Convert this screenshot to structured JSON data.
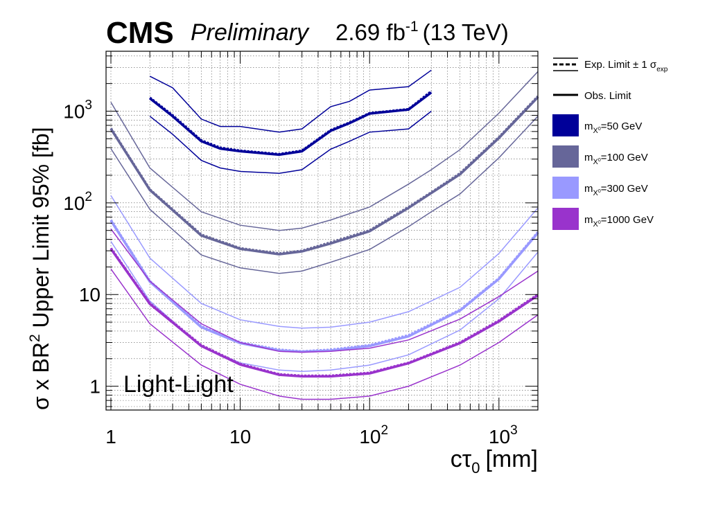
{
  "header": {
    "experiment": "CMS",
    "status": "Preliminary",
    "lumi": "2.69 fb",
    "lumi_exp": "-1",
    "energy": "(13 TeV)"
  },
  "chart_data": {
    "type": "line",
    "title": "",
    "xlabel": "cτ",
    "xlabel_sub": "0",
    "xlabel_unit": "[mm]",
    "ylabel_pre": "σ x BR",
    "ylabel_sup": "2",
    "ylabel_post": " Upper Limit 95% [fb]",
    "xscale": "log",
    "yscale": "log",
    "xlim": [
      1,
      2000
    ],
    "ylim": [
      0.55,
      4500
    ],
    "grid": true,
    "annotation": "Light-Light",
    "x_ticks": [
      {
        "value": 1,
        "base": "1",
        "exp": ""
      },
      {
        "value": 10,
        "base": "10",
        "exp": ""
      },
      {
        "value": 100,
        "base": "10",
        "exp": "2"
      },
      {
        "value": 1000,
        "base": "10",
        "exp": "3"
      }
    ],
    "y_ticks": [
      {
        "value": 1,
        "base": "1",
        "exp": ""
      },
      {
        "value": 10,
        "base": "10",
        "exp": ""
      },
      {
        "value": 100,
        "base": "10",
        "exp": "2"
      },
      {
        "value": 1000,
        "base": "10",
        "exp": "3"
      }
    ],
    "legend": {
      "placement": "right",
      "exp_label": "Exp. Limit ± 1 σ",
      "exp_label_sub": "exp",
      "obs_label": "Obs. Limit",
      "mass_prefix": "m",
      "mass_sub": "X",
      "mass_sub_sup": "0"
    },
    "series": [
      {
        "name": "=50 GeV",
        "color": "#000099",
        "x": [
          2,
          3,
          5,
          7,
          10,
          20,
          30,
          50,
          70,
          100,
          200,
          300
        ],
        "expected": [
          1400,
          900,
          480,
          400,
          370,
          340,
          370,
          620,
          750,
          950,
          1050,
          1650
        ],
        "observed": [
          1380,
          880,
          470,
          390,
          365,
          335,
          365,
          610,
          740,
          940,
          1040,
          1600
        ],
        "exp_up": [
          2400,
          1800,
          820,
          680,
          680,
          590,
          640,
          1120,
          1280,
          1700,
          1850,
          2800
        ],
        "exp_down": [
          880,
          560,
          290,
          240,
          220,
          210,
          230,
          385,
          470,
          590,
          640,
          1000
        ]
      },
      {
        "name": "=100 GeV",
        "color": "#666699",
        "x": [
          1,
          2,
          5,
          10,
          20,
          30,
          50,
          100,
          200,
          300,
          500,
          1000,
          2000
        ],
        "expected": [
          650,
          140,
          45,
          32,
          28,
          30,
          37,
          50,
          90,
          130,
          210,
          520,
          1450
        ],
        "observed": [
          640,
          138,
          44,
          31.5,
          27.5,
          29.5,
          36,
          49,
          88,
          128,
          205,
          510,
          1420
        ],
        "exp_up": [
          1250,
          240,
          80,
          57,
          50,
          53,
          65,
          90,
          160,
          230,
          380,
          950,
          2700
        ],
        "exp_down": [
          390,
          85,
          27,
          19.5,
          17,
          18,
          22.5,
          31,
          55,
          80,
          125,
          310,
          880
        ]
      },
      {
        "name": "=300 GeV",
        "color": "#9999ff",
        "x": [
          1,
          2,
          5,
          10,
          20,
          30,
          50,
          100,
          200,
          500,
          1000,
          2000
        ],
        "expected": [
          65,
          14,
          4.5,
          3.0,
          2.5,
          2.4,
          2.5,
          2.8,
          3.6,
          6.8,
          15,
          48
        ],
        "observed": [
          64,
          13.8,
          4.4,
          2.95,
          2.45,
          2.38,
          2.45,
          2.75,
          3.5,
          6.7,
          14.8,
          47
        ],
        "exp_up": [
          120,
          25,
          8,
          5.3,
          4.5,
          4.3,
          4.4,
          5.0,
          6.5,
          12,
          28,
          88
        ],
        "exp_down": [
          38,
          8.5,
          2.7,
          1.8,
          1.5,
          1.45,
          1.5,
          1.7,
          2.2,
          4.1,
          9,
          29
        ]
      },
      {
        "name": "=1000 GeV",
        "color": "#9933cc",
        "x": [
          1,
          2,
          5,
          10,
          20,
          30,
          50,
          100,
          200,
          500,
          1000,
          2000
        ],
        "expected": [
          32,
          8,
          2.8,
          1.75,
          1.35,
          1.3,
          1.3,
          1.4,
          1.8,
          3.0,
          5.2,
          10
        ],
        "observed": [
          31.5,
          7.9,
          2.75,
          1.72,
          1.33,
          1.28,
          1.28,
          1.38,
          1.78,
          2.95,
          5.1,
          9.8
        ],
        "exp_up": [
          52,
          14,
          4.8,
          3.0,
          2.4,
          2.35,
          2.4,
          2.6,
          3.2,
          5.4,
          9.5,
          18
        ],
        "exp_down": [
          19,
          4.8,
          1.7,
          1.05,
          0.78,
          0.72,
          0.72,
          0.78,
          1.0,
          1.7,
          3.0,
          6.0
        ]
      }
    ]
  }
}
